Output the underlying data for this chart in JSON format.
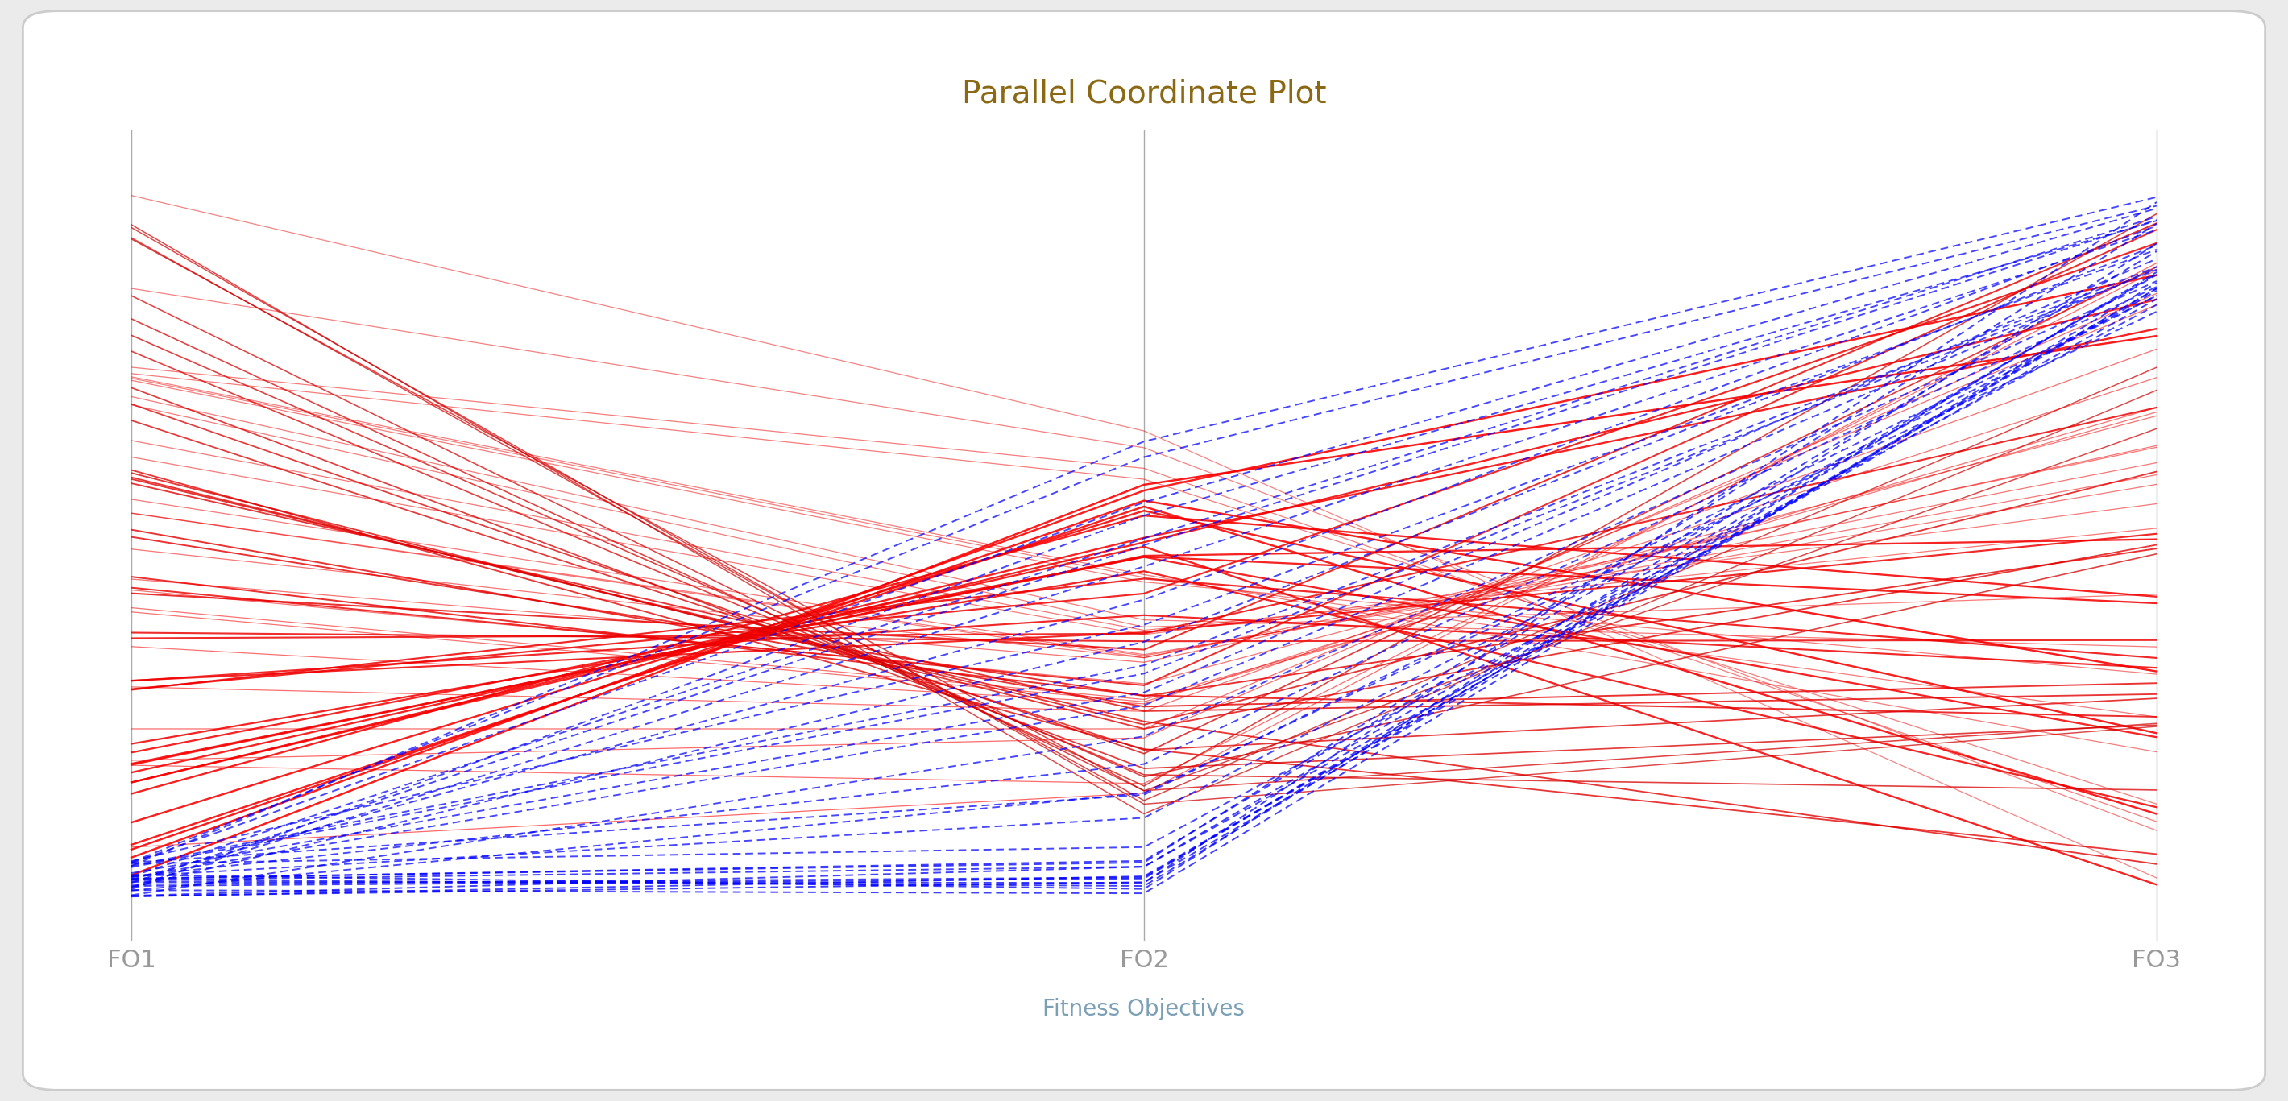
{
  "title": "Parallel Coordinate Plot",
  "title_color": "#8B6914",
  "axes_labels": [
    "FO1",
    "FO2",
    "FO3"
  ],
  "xlabel": "Fitness Objectives",
  "xlabel_color": "#7B9FB5",
  "axes_label_color": "#999999",
  "background_color": "#FFFFFF",
  "figure_background": "#EBEBEB",
  "border_color": "#CCCCCC",
  "axis_line_color": "#AAAAAA",
  "ylim": [
    -0.05,
    1.05
  ],
  "xlim": [
    -0.05,
    2.05
  ],
  "title_fontsize": 28,
  "tick_fontsize": 22,
  "xlabel_fontsize": 20
}
